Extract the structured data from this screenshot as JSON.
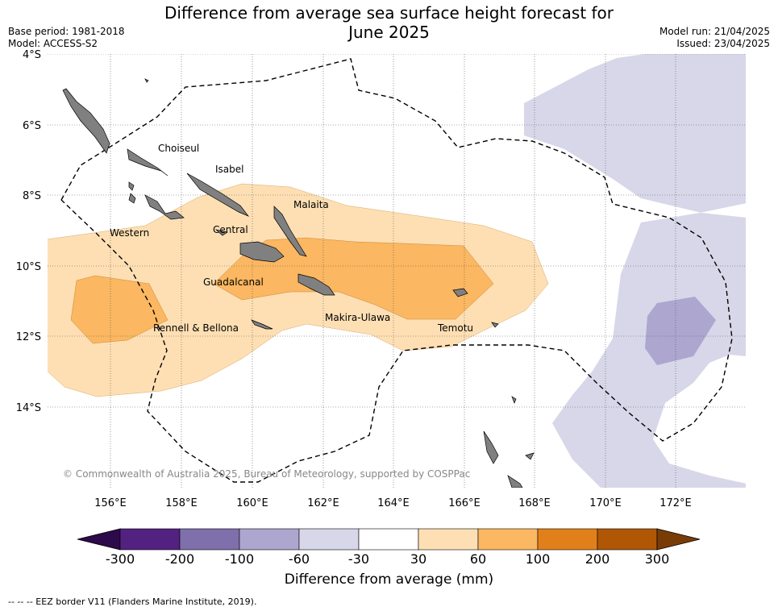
{
  "title_line1": "Difference from average sea surface height forecast for",
  "title_line2": "June 2025",
  "base_period": "Base period: 1981-2018",
  "model": "Model: ACCESS-S2",
  "model_run": "Model run: 21/04/2025",
  "issued": "Issued: 23/04/2025",
  "copyright": "© Commonwealth of Australia 2025, Bureau of Meteorology, supported by COSPPac",
  "lat_labels": [
    "4°S",
    "6°S",
    "8°S",
    "10°S",
    "12°S",
    "14°S"
  ],
  "lon_labels": [
    "156°E",
    "158°E",
    "160°E",
    "162°E",
    "164°E",
    "166°E",
    "168°E",
    "170°E",
    "172°E"
  ],
  "province_labels": [
    "Choiseul",
    "Isabel",
    "Malaita",
    "Western",
    "Central",
    "Guadalcanal",
    "Makira-Ulawa",
    "Temotu",
    "Rennell & Bellona"
  ],
  "colorbar": {
    "title": "Difference from average (mm)",
    "ticks": [
      "-300",
      "-200",
      "-100",
      "-60",
      "-30",
      "30",
      "60",
      "100",
      "200",
      "300"
    ],
    "colors": [
      "#53217f",
      "#7f6fab",
      "#ada6cf",
      "#d7d7e9",
      "#ffffff",
      "#fedfb3",
      "#fbb761",
      "#e1801a",
      "#b05705"
    ],
    "under_color": "#2d0a4a",
    "over_color": "#7a3c06"
  },
  "footnote": "-- -- -- EEZ border V11 (Flanders Marine Institute, 2019)."
}
